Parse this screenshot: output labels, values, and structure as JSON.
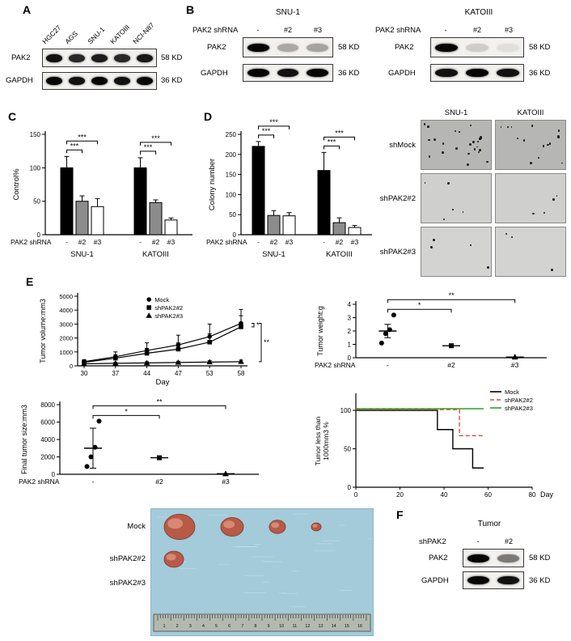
{
  "colors": {
    "black": "#000000",
    "bar_gray": "#8c8c8c",
    "red": "#e04848",
    "green": "#2ca02c",
    "photo_bg": "#a3cbd9",
    "tumor_fill": "#b85a48"
  },
  "panel_a": {
    "label": "A",
    "cell_lines": [
      "HGC27",
      "AGS",
      "SNU-1",
      "KATOIII",
      "NCI-N87"
    ],
    "rows": [
      {
        "protein": "PAK2",
        "size": "58 KD",
        "bands": [
          0.95,
          0.85,
          0.9,
          0.85,
          0.92
        ]
      },
      {
        "protein": "GAPDH",
        "size": "36 KD",
        "bands": [
          1,
          0.95,
          1,
          0.95,
          1
        ]
      }
    ]
  },
  "panel_b": {
    "label": "B",
    "blots": [
      {
        "title": "SNU-1",
        "shrna_label": "PAK2 shRNA",
        "lanes": [
          "-",
          "#2",
          "#3"
        ],
        "rows": [
          {
            "protein": "PAK2",
            "size": "58 KD",
            "bands": [
              1,
              0.3,
              0.32
            ]
          },
          {
            "protein": "GAPDH",
            "size": "36 KD",
            "bands": [
              1,
              0.95,
              1
            ]
          }
        ]
      },
      {
        "title": "KATOIII",
        "shrna_label": "PAK2 shRNA",
        "lanes": [
          "-",
          "#2",
          "#3"
        ],
        "rows": [
          {
            "protein": "PAK2",
            "size": "58 KD",
            "bands": [
              1,
              0.15,
              0.07
            ]
          },
          {
            "protein": "GAPDH",
            "size": "36 KD",
            "bands": [
              0.95,
              1,
              0.95
            ]
          }
        ]
      }
    ]
  },
  "panel_c": {
    "label": "C"
  },
  "panel_d": {
    "label": "D"
  },
  "colony": {
    "col_headers": [
      "SNU-1",
      "KATOIII"
    ],
    "row_labels": [
      "shMock",
      "shPAK2#2",
      "shPAK2#3"
    ],
    "dot_counts": [
      [
        24,
        14
      ],
      [
        5,
        4
      ],
      [
        4,
        3
      ]
    ],
    "row_bg": [
      "#b6b6b4",
      "#cfcfcd",
      "#d3d3d1"
    ]
  },
  "panel_e": {
    "label": "E",
    "photo": {
      "row_labels": [
        "Mock",
        "shPAK2#2",
        "shPAK2#3"
      ],
      "tumor_radii": [
        [
          19,
          14,
          10,
          6
        ],
        [
          12
        ],
        []
      ],
      "ruler_numbers": [
        "1",
        "2",
        "3",
        "4",
        "5",
        "6",
        "7",
        "8",
        "9",
        "10",
        "11",
        "12",
        "13",
        "14",
        "15",
        "16"
      ]
    }
  },
  "panel_f": {
    "label": "F",
    "title": "Tumor",
    "shrna_label": "shPAK2",
    "lanes": [
      "-",
      "#2"
    ],
    "rows": [
      {
        "protein": "PAK2",
        "size": "58 KD",
        "bands": [
          1,
          0.5
        ]
      },
      {
        "protein": "GAPDH",
        "size": "36 KD",
        "bands": [
          1,
          0.95
        ]
      }
    ]
  },
  "chart_data": [
    {
      "id": "control_percent",
      "type": "bar",
      "ylabel": "Control%",
      "ylim": [
        0,
        150
      ],
      "yticks": [
        0,
        50,
        100,
        150
      ],
      "lanes": [
        "-",
        "#2",
        "#3"
      ],
      "xlabel_row": "PAK2 shRNA",
      "bar_colors": [
        "#000000",
        "#8c8c8c",
        "#ffffff"
      ],
      "series": [
        {
          "group": "SNU-1",
          "values": [
            100,
            50,
            42
          ],
          "errors": [
            17,
            8,
            12
          ]
        },
        {
          "group": "KATOIII",
          "values": [
            100,
            48,
            22
          ],
          "errors": [
            15,
            4,
            3
          ]
        }
      ],
      "significance": [
        {
          "group": 0,
          "from": 0,
          "to": 1,
          "label": "***",
          "level": 0
        },
        {
          "group": 0,
          "from": 0,
          "to": 2,
          "label": "***",
          "level": 1
        },
        {
          "group": 1,
          "from": 0,
          "to": 1,
          "label": "***",
          "level": 0
        },
        {
          "group": 1,
          "from": 0,
          "to": 2,
          "label": "***",
          "level": 1
        }
      ]
    },
    {
      "id": "colony_number",
      "type": "bar",
      "ylabel": "Colony number",
      "ylim": [
        0,
        250
      ],
      "yticks": [
        0,
        50,
        100,
        150,
        200,
        250
      ],
      "lanes": [
        "-",
        "#2",
        "#3"
      ],
      "xlabel_row": "PAK2 shRNA",
      "bar_colors": [
        "#000000",
        "#8c8c8c",
        "#ffffff"
      ],
      "series": [
        {
          "group": "SNU-1",
          "values": [
            220,
            48,
            47
          ],
          "errors": [
            12,
            12,
            8
          ]
        },
        {
          "group": "KATOIII",
          "values": [
            160,
            30,
            18
          ],
          "errors": [
            45,
            12,
            5
          ]
        }
      ],
      "significance": [
        {
          "group": 0,
          "from": 0,
          "to": 1,
          "label": "***",
          "level": 0
        },
        {
          "group": 0,
          "from": 0,
          "to": 2,
          "label": "***",
          "level": 1
        },
        {
          "group": 1,
          "from": 0,
          "to": 1,
          "label": "***",
          "level": 0
        },
        {
          "group": 1,
          "from": 0,
          "to": 2,
          "label": "***",
          "level": 1
        }
      ]
    },
    {
      "id": "tumor_volume",
      "type": "line",
      "ylabel": "Tumor volume:mm3",
      "xlabel": "Day",
      "x": [
        30,
        37,
        44,
        47,
        53,
        58
      ],
      "ylim": [
        0,
        5000
      ],
      "yticks": [
        0,
        1000,
        2000,
        3000,
        4000,
        5000
      ],
      "series": [
        {
          "name": "Mock",
          "marker": "circle",
          "values": [
            300,
            650,
            1100,
            1500,
            2100,
            3050
          ],
          "errors": [
            150,
            350,
            550,
            700,
            900,
            1000
          ]
        },
        {
          "name": "shPAK2#2",
          "marker": "square",
          "values": [
            250,
            550,
            900,
            1200,
            1700,
            2800
          ],
          "errors": [
            120,
            250,
            350,
            450,
            600,
            800
          ]
        },
        {
          "name": "shPAK2#3",
          "marker": "triangle",
          "values": [
            150,
            180,
            210,
            240,
            270,
            300
          ],
          "errors": [
            60,
            70,
            80,
            90,
            100,
            110
          ]
        }
      ],
      "significance_right": [
        {
          "between": [
            0,
            1
          ],
          "label": "*"
        },
        {
          "between": [
            0,
            2
          ],
          "label": "**"
        }
      ]
    },
    {
      "id": "tumor_weight",
      "type": "scatter",
      "ylabel": "Tumor weight:g",
      "xlabel_row": "PAK2 shRNA",
      "categories": [
        "-",
        "#2",
        "#3"
      ],
      "ylim": [
        0,
        4
      ],
      "yticks": [
        0,
        1,
        2,
        3,
        4
      ],
      "markers": [
        "circle",
        "square",
        "triangle"
      ],
      "points": [
        [
          1.1,
          1.8,
          2.1,
          3.2
        ],
        [
          0.9
        ],
        [
          0.05
        ]
      ],
      "means": [
        2.0,
        0.9,
        0.05
      ],
      "errors": [
        0.5,
        0,
        0
      ],
      "significance": [
        {
          "from": 0,
          "to": 1,
          "label": "*",
          "level": 0
        },
        {
          "from": 0,
          "to": 2,
          "label": "**",
          "level": 1
        }
      ]
    },
    {
      "id": "final_tumor_size",
      "type": "scatter",
      "ylabel": "Final tumor size:mm3",
      "xlabel_row": "PAK2 shRNA",
      "categories": [
        "-",
        "#2",
        "#3"
      ],
      "ylim": [
        0,
        8000
      ],
      "yticks": [
        0,
        2000,
        4000,
        6000,
        8000
      ],
      "markers": [
        "circle",
        "square",
        "triangle"
      ],
      "points": [
        [
          900,
          2000,
          3100,
          6100
        ],
        [
          1900
        ],
        [
          60
        ]
      ],
      "means": [
        3000,
        1900,
        60
      ],
      "errors": [
        2300,
        0,
        0
      ],
      "significance": [
        {
          "from": 0,
          "to": 1,
          "label": "*",
          "level": 0
        },
        {
          "from": 0,
          "to": 2,
          "label": "**",
          "level": 1
        }
      ]
    },
    {
      "id": "tumor_less_than_1000",
      "type": "step",
      "ylabel_lines": [
        "Tumor less than",
        "1000mm3 %"
      ],
      "xlabel": "Day",
      "xlim": [
        0,
        80
      ],
      "xticks": [
        0,
        20,
        40,
        60,
        80
      ],
      "ylim": [
        0,
        120
      ],
      "yticks": [
        0,
        50,
        100
      ],
      "series": [
        {
          "name": "Mock",
          "color": "#000000",
          "dash": "solid",
          "points": [
            [
              0,
              100
            ],
            [
              37,
              100
            ],
            [
              37,
              75
            ],
            [
              44,
              75
            ],
            [
              44,
              50
            ],
            [
              53,
              50
            ],
            [
              53,
              25
            ],
            [
              58,
              25
            ]
          ]
        },
        {
          "name": "shPAK2#2",
          "color": "#e04848",
          "dash": "dashed",
          "points": [
            [
              0,
              100
            ],
            [
              47,
              100
            ],
            [
              47,
              66
            ],
            [
              58,
              66
            ]
          ]
        },
        {
          "name": "shPAK2#3",
          "color": "#2ca02c",
          "dash": "solid",
          "points": [
            [
              0,
              100
            ],
            [
              58,
              100
            ]
          ]
        }
      ]
    }
  ]
}
